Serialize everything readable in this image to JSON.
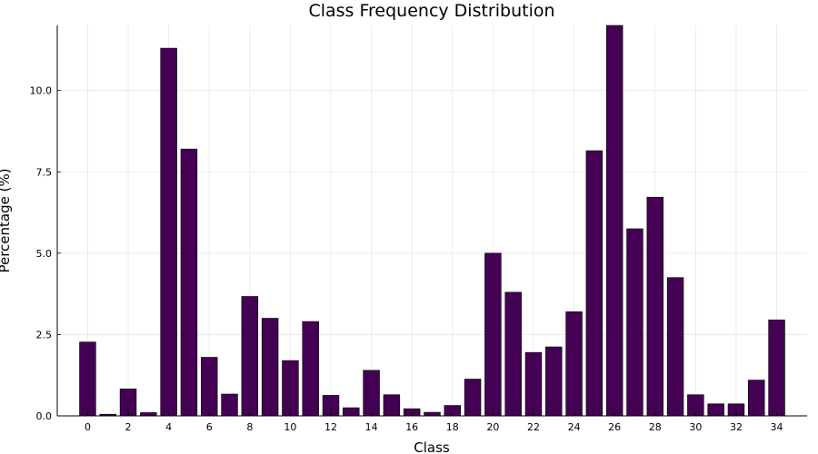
{
  "chart_data": {
    "type": "bar",
    "title": "Class Frequency Distribution",
    "xlabel": "Class",
    "ylabel": "Percentage (%)",
    "categories": [
      0,
      1,
      2,
      3,
      4,
      5,
      6,
      7,
      8,
      9,
      10,
      11,
      12,
      13,
      14,
      15,
      16,
      17,
      18,
      19,
      20,
      21,
      22,
      23,
      24,
      25,
      26,
      27,
      28,
      29,
      30,
      31,
      32,
      33,
      34
    ],
    "values": [
      2.27,
      0.05,
      0.83,
      0.1,
      11.3,
      8.2,
      1.8,
      0.67,
      3.67,
      3.0,
      1.7,
      2.9,
      0.63,
      0.25,
      1.4,
      0.65,
      0.22,
      0.11,
      0.32,
      1.13,
      5.0,
      3.8,
      1.95,
      2.12,
      3.2,
      8.15,
      12.0,
      5.75,
      6.72,
      4.25,
      0.65,
      0.37,
      0.37,
      1.1,
      2.95
    ],
    "xticks": [
      "0",
      "2",
      "4",
      "6",
      "8",
      "10",
      "12",
      "14",
      "16",
      "18",
      "20",
      "22",
      "24",
      "26",
      "28",
      "30",
      "32",
      "34"
    ],
    "yticks": [
      "0.0",
      "2.5",
      "5.0",
      "7.5",
      "10.0"
    ],
    "ylim": [
      0,
      12.0
    ],
    "xlim": [
      -1.5,
      35.5
    ],
    "grid": true,
    "legend": "none",
    "bar_color": "#440154",
    "bar_edge_color": "#000000"
  }
}
